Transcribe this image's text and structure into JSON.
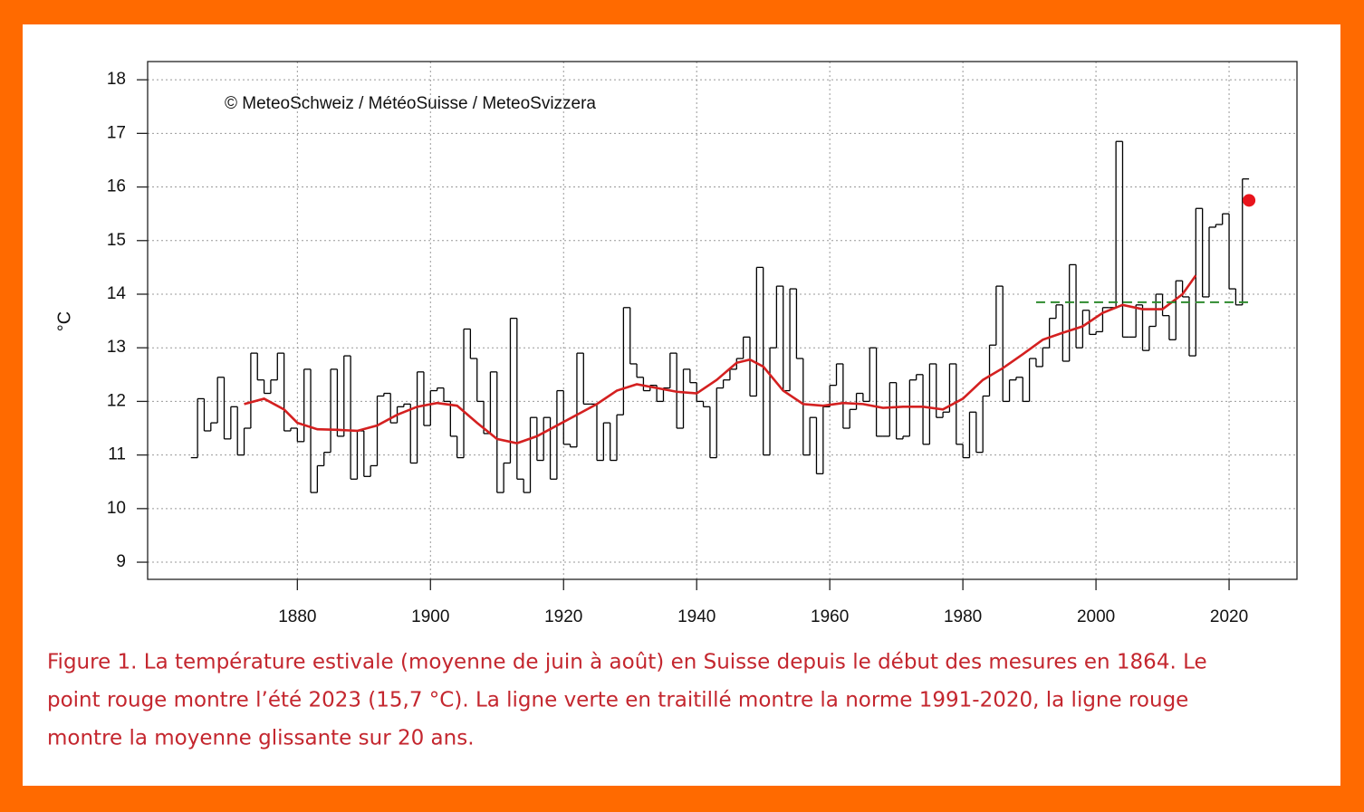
{
  "chart_data": {
    "type": "step",
    "annotation": "© MeteoSchweiz / MétéoSuisse / MeteoSvizzera",
    "ylabel": "°C",
    "xlim": [
      1857.5,
      2030.2
    ],
    "ylim": [
      8.68,
      18.34
    ],
    "xticks": [
      1880,
      1900,
      1920,
      1940,
      1960,
      1980,
      2000,
      2020
    ],
    "yticks": [
      9,
      10,
      11,
      12,
      13,
      14,
      15,
      16,
      17,
      18
    ],
    "grid": true,
    "series": [
      {
        "type": "step",
        "color": "#000000",
        "x": [
          1864,
          1865,
          1866,
          1867,
          1868,
          1869,
          1870,
          1871,
          1872,
          1873,
          1874,
          1875,
          1876,
          1877,
          1878,
          1879,
          1880,
          1881,
          1882,
          1883,
          1884,
          1885,
          1886,
          1887,
          1888,
          1889,
          1890,
          1891,
          1892,
          1893,
          1894,
          1895,
          1896,
          1897,
          1898,
          1899,
          1900,
          1901,
          1902,
          1903,
          1904,
          1905,
          1906,
          1907,
          1908,
          1909,
          1910,
          1911,
          1912,
          1913,
          1914,
          1915,
          1916,
          1917,
          1918,
          1919,
          1920,
          1921,
          1922,
          1923,
          1924,
          1925,
          1926,
          1927,
          1928,
          1929,
          1930,
          1931,
          1932,
          1933,
          1934,
          1935,
          1936,
          1937,
          1938,
          1939,
          1940,
          1941,
          1942,
          1943,
          1944,
          1945,
          1946,
          1947,
          1948,
          1949,
          1950,
          1951,
          1952,
          1953,
          1954,
          1955,
          1956,
          1957,
          1958,
          1959,
          1960,
          1961,
          1962,
          1963,
          1964,
          1965,
          1966,
          1967,
          1968,
          1969,
          1970,
          1971,
          1972,
          1973,
          1974,
          1975,
          1976,
          1977,
          1978,
          1979,
          1980,
          1981,
          1982,
          1983,
          1984,
          1985,
          1986,
          1987,
          1988,
          1989,
          1990,
          1991,
          1992,
          1993,
          1994,
          1995,
          1996,
          1997,
          1998,
          1999,
          2000,
          2001,
          2002,
          2003,
          2004,
          2005,
          2006,
          2007,
          2008,
          2009,
          2010,
          2011,
          2012,
          2013,
          2014,
          2015,
          2016,
          2017,
          2018,
          2019,
          2020,
          2021,
          2022
        ],
        "values": [
          10.95,
          12.05,
          11.45,
          11.6,
          12.45,
          11.3,
          11.9,
          11.0,
          11.5,
          12.9,
          12.4,
          12.15,
          12.4,
          12.9,
          11.45,
          11.5,
          11.25,
          12.6,
          10.3,
          10.8,
          11.05,
          12.6,
          11.35,
          12.85,
          10.55,
          11.45,
          10.6,
          10.8,
          12.1,
          12.15,
          11.6,
          11.9,
          11.95,
          10.85,
          12.55,
          11.55,
          12.2,
          12.25,
          12.0,
          11.35,
          10.95,
          13.35,
          12.8,
          12.0,
          11.4,
          12.55,
          10.3,
          10.85,
          13.55,
          10.55,
          10.3,
          11.7,
          10.9,
          11.7,
          10.55,
          12.2,
          11.2,
          11.15,
          12.9,
          11.95,
          11.95,
          10.9,
          11.6,
          10.9,
          11.75,
          13.75,
          12.7,
          12.45,
          12.2,
          12.3,
          12.0,
          12.25,
          12.9,
          11.5,
          12.6,
          12.35,
          12.0,
          11.9,
          10.95,
          12.25,
          12.4,
          12.6,
          12.8,
          13.2,
          12.1,
          14.5,
          11.0,
          13.0,
          14.15,
          12.2,
          14.1,
          12.8,
          11.0,
          11.7,
          10.65,
          11.9,
          12.3,
          12.7,
          11.5,
          11.85,
          12.15,
          12.0,
          13.0,
          11.35,
          11.35,
          12.35,
          11.3,
          11.35,
          12.4,
          12.5,
          11.2,
          12.7,
          11.7,
          11.8,
          12.7,
          11.2,
          10.95,
          11.8,
          11.05,
          12.1,
          13.05,
          14.15,
          12.0,
          12.4,
          12.45,
          12.0,
          12.8,
          12.65,
          13.0,
          13.55,
          13.8,
          12.75,
          14.55,
          13.0,
          13.7,
          13.25,
          13.3,
          13.75,
          13.75,
          16.85,
          13.2,
          13.2,
          13.8,
          12.95,
          13.4,
          14.0,
          13.6,
          13.15,
          14.25,
          13.95,
          12.85,
          15.6,
          13.95,
          15.25,
          15.3,
          15.5,
          14.1,
          13.8,
          16.15
        ]
      },
      {
        "type": "line",
        "color": "#d42020",
        "x": [
          1872,
          1875,
          1878,
          1880,
          1883,
          1886,
          1889,
          1892,
          1895,
          1898,
          1901,
          1904,
          1907,
          1910,
          1913,
          1916,
          1919,
          1922,
          1925,
          1928,
          1931,
          1934,
          1937,
          1940,
          1943,
          1946,
          1948,
          1950,
          1953,
          1956,
          1959,
          1962,
          1965,
          1968,
          1971,
          1974,
          1977,
          1980,
          1983,
          1986,
          1989,
          1992,
          1995,
          1998,
          2001,
          2004,
          2007,
          2010,
          2013,
          2015
        ],
        "values": [
          11.95,
          12.05,
          11.85,
          11.6,
          11.48,
          11.47,
          11.45,
          11.55,
          11.75,
          11.9,
          11.97,
          11.92,
          11.6,
          11.3,
          11.22,
          11.35,
          11.55,
          11.75,
          11.95,
          12.2,
          12.32,
          12.25,
          12.18,
          12.15,
          12.4,
          12.72,
          12.78,
          12.65,
          12.2,
          11.95,
          11.92,
          11.97,
          11.95,
          11.88,
          11.9,
          11.9,
          11.85,
          12.05,
          12.4,
          12.62,
          12.88,
          13.15,
          13.28,
          13.4,
          13.65,
          13.8,
          13.72,
          13.72,
          14.0,
          14.35
        ]
      },
      {
        "type": "dashed",
        "color": "#2e8b2e",
        "x": [
          1991,
          2023
        ],
        "values": [
          13.85,
          13.85
        ]
      },
      {
        "type": "scatter",
        "color": "#e8141c",
        "x": [
          2023
        ],
        "values": [
          15.75
        ]
      }
    ]
  },
  "caption_lines": [
    "Figure 1. La température estivale (moyenne de juin à août) en Suisse depuis le début des mesures en 1864. Le",
    "point rouge montre l’été 2023 (15,7 °C). La ligne verte en traitillé montre la norme 1991-2020, la ligne rouge",
    "montre la moyenne glissante sur 20 ans."
  ]
}
